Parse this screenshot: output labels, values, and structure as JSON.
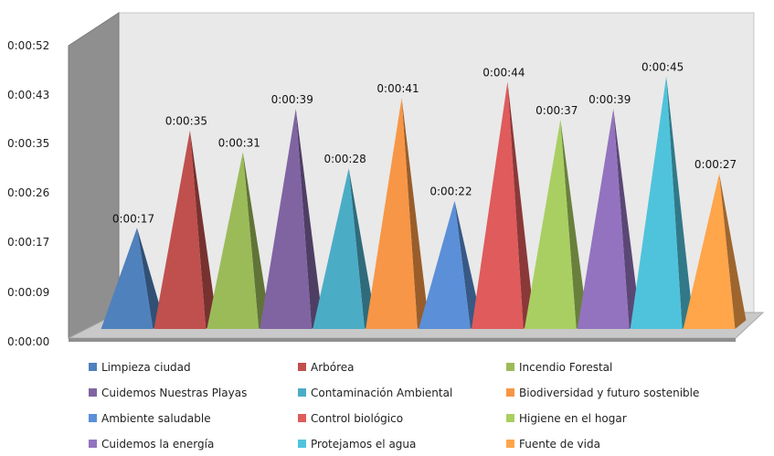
{
  "chart_data": {
    "type": "bar",
    "style": "3d-pyramid",
    "categories": [
      "Limpieza ciudad",
      "Arbórea",
      "Incendio Forestal",
      "Cuidemos Nuestras Playas",
      "Contaminación Ambiental",
      "Biodiversidad y futuro sostenible",
      "Ambiente saludable",
      "Control biológico",
      "Higiene en el hogar",
      "Cuidemos la energía",
      "Protejamos el agua",
      "Fuente de vida"
    ],
    "values_seconds": [
      17,
      35,
      31,
      39,
      28,
      41,
      22,
      44,
      37,
      39,
      45,
      27
    ],
    "data_labels": [
      "0:00:17",
      "0:00:35",
      "0:00:31",
      "0:00:39",
      "0:00:28",
      "0:00:41",
      "0:00:22",
      "0:00:44",
      "0:00:37",
      "0:00:39",
      "0:00:45",
      "0:00:27"
    ],
    "y_ticks": [
      "0:00:00",
      "0:00:09",
      "0:00:17",
      "0:00:26",
      "0:00:35",
      "0:00:43",
      "0:00:52"
    ],
    "y_tick_seconds": [
      0,
      8.7,
      17.3,
      26,
      34.7,
      43.3,
      52
    ],
    "ylim_seconds": [
      0,
      52
    ],
    "colors": [
      "#4F81BD",
      "#C0504D",
      "#9BBB59",
      "#8064A2",
      "#4BACC6",
      "#F79646",
      "#5B8FD8",
      "#E05B5B",
      "#A9CF62",
      "#9373BF",
      "#4FC3DC",
      "#FFA54A"
    ],
    "legend_position": "bottom",
    "grid": false,
    "title": "",
    "xlabel": "",
    "ylabel": ""
  }
}
